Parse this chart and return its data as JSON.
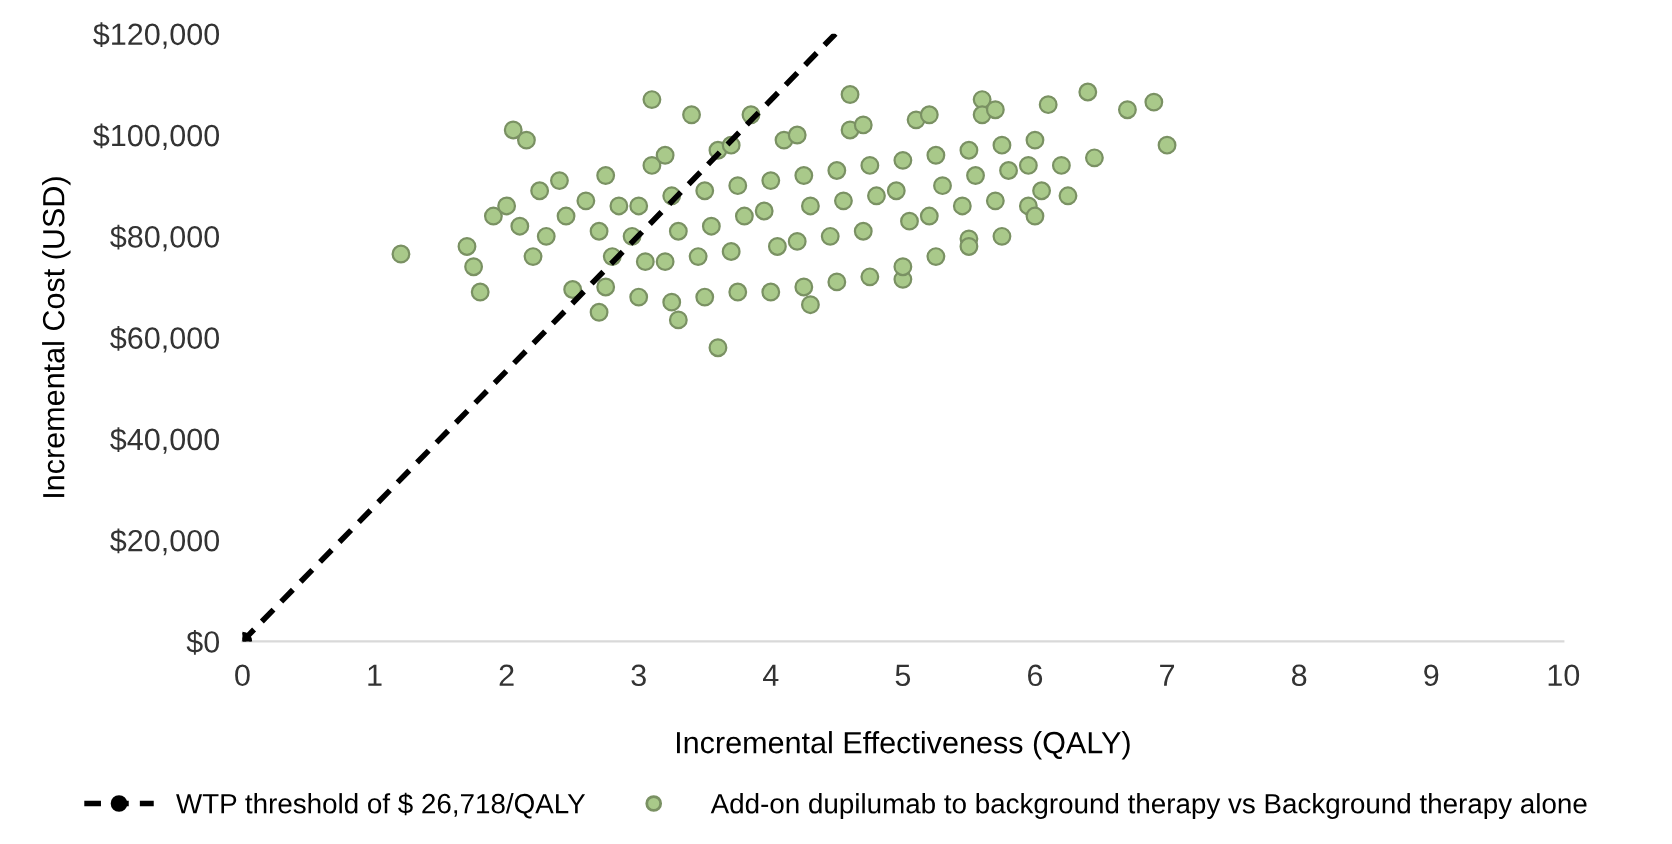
{
  "chart_data": {
    "type": "scatter",
    "xlabel": "Incremental Effectiveness (QALY)",
    "ylabel": "Incremental Cost (USD)",
    "xlim": [
      0,
      10
    ],
    "xticks": [
      0,
      1,
      2,
      3,
      4,
      5,
      6,
      7,
      8,
      9,
      10
    ],
    "ylim": [
      0,
      120000
    ],
    "yticks": [
      {
        "value": 0,
        "label": "$0"
      },
      {
        "value": 20000,
        "label": "$20,000"
      },
      {
        "value": 40000,
        "label": "$40,000"
      },
      {
        "value": 60000,
        "label": "$60,000"
      },
      {
        "value": 80000,
        "label": "$80,000"
      },
      {
        "value": 100000,
        "label": "$100,000"
      },
      {
        "value": 120000,
        "label": "$120,000"
      }
    ],
    "grid": false,
    "legend": "bottom",
    "series": [
      {
        "name": "WTP threshold of $ 26,718/QALY",
        "type": "line",
        "color": "#000000",
        "line_style": "dashed",
        "marker": "circle",
        "x": [
          0,
          4.49
        ],
        "values": [
          0,
          120000
        ]
      },
      {
        "name": "Add-on dupilumab to background therapy vs Background therapy alone",
        "color": "#a9c98a",
        "marker": "circle",
        "x": [
          1.2,
          1.7,
          1.75,
          1.8,
          1.9,
          2.05,
          2.15,
          2.25,
          2.0,
          2.4,
          3.1,
          3.85,
          3.4,
          3.6,
          4.6,
          5.6,
          6.4,
          6.7,
          6.9,
          7.0,
          6.45,
          6.2,
          6.25,
          5.95,
          5.5,
          5.0,
          4.3,
          3.3,
          2.7,
          2.5,
          2.2,
          2.1,
          2.3,
          2.45,
          2.6,
          2.75,
          2.8,
          2.7,
          2.85,
          2.75,
          3.0,
          3.05,
          2.95,
          3.0,
          3.1,
          3.25,
          3.2,
          3.3,
          3.25,
          3.2,
          3.5,
          3.45,
          3.55,
          3.5,
          3.6,
          3.75,
          3.7,
          3.8,
          3.75,
          3.7,
          4.0,
          4.05,
          3.95,
          4.0,
          4.1,
          4.25,
          4.2,
          4.3,
          4.25,
          4.2,
          4.5,
          4.45,
          4.55,
          4.5,
          4.6,
          4.75,
          4.7,
          4.8,
          4.75,
          4.7,
          5.0,
          5.05,
          4.95,
          5.0,
          5.1,
          5.25,
          5.2,
          5.3,
          5.25,
          5.2,
          5.5,
          5.45,
          5.55,
          5.5,
          5.6,
          5.75,
          5.7,
          5.8,
          5.75,
          5.7,
          6.0,
          6.05,
          5.95,
          6.0,
          6.1
        ],
        "values": [
          76500,
          78000,
          74000,
          69000,
          84000,
          101000,
          99000,
          89000,
          86000,
          91000,
          107000,
          104000,
          104000,
          58000,
          108000,
          107000,
          108500,
          105000,
          106500,
          98000,
          95500,
          94000,
          88000,
          86000,
          79500,
          71500,
          66500,
          63500,
          65000,
          69500,
          76000,
          82000,
          80000,
          84000,
          87000,
          70000,
          76000,
          81000,
          86000,
          92000,
          68000,
          75000,
          80000,
          86000,
          94000,
          67000,
          75000,
          81000,
          88000,
          96000,
          68000,
          76000,
          82000,
          89000,
          97000,
          69000,
          77000,
          84000,
          90000,
          98000,
          69000,
          78000,
          85000,
          91000,
          99000,
          70000,
          79000,
          86000,
          92000,
          100000,
          71000,
          80000,
          87000,
          93000,
          101000,
          72000,
          81000,
          88000,
          94000,
          102000,
          74000,
          83000,
          89000,
          95000,
          103000,
          76000,
          84000,
          90000,
          96000,
          104000,
          78000,
          86000,
          92000,
          97000,
          104000,
          80000,
          87000,
          93000,
          98000,
          105000,
          84000,
          89000,
          94000,
          99000,
          106000
        ]
      }
    ]
  }
}
